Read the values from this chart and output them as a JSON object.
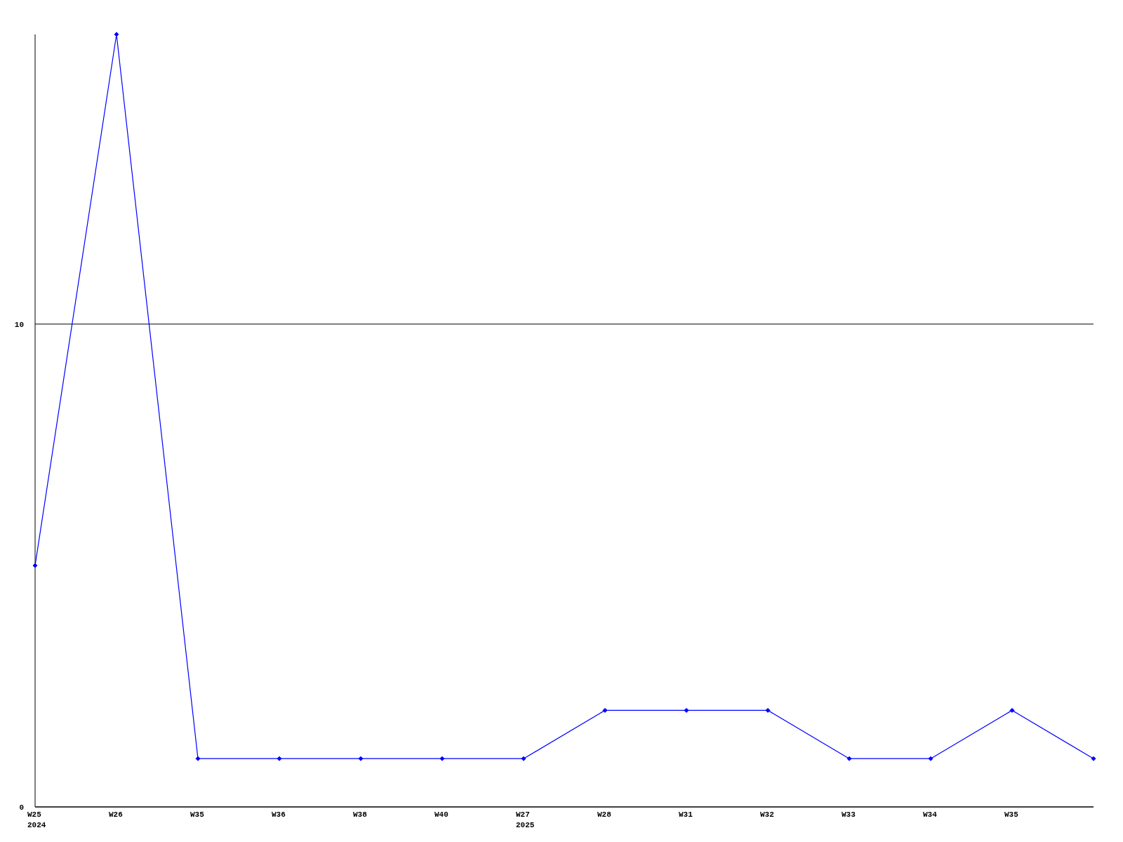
{
  "chart_data": {
    "type": "line",
    "categories": [
      "W25\n2024",
      "W26",
      "W35",
      "W36",
      "W38",
      "W40",
      "W27\n2025",
      "W28",
      "W31",
      "W32",
      "W33",
      "W34",
      "W35",
      null
    ],
    "series": [
      {
        "color": "#0000ff",
        "values": [
          5,
          16,
          1,
          1,
          1,
          1,
          1,
          2,
          2,
          2,
          1,
          1,
          2,
          1
        ]
      }
    ],
    "ylim": [
      0,
      16
    ],
    "yticks": [
      0,
      10
    ],
    "grid": "y",
    "marker": "diamond",
    "line_style": "solid"
  }
}
